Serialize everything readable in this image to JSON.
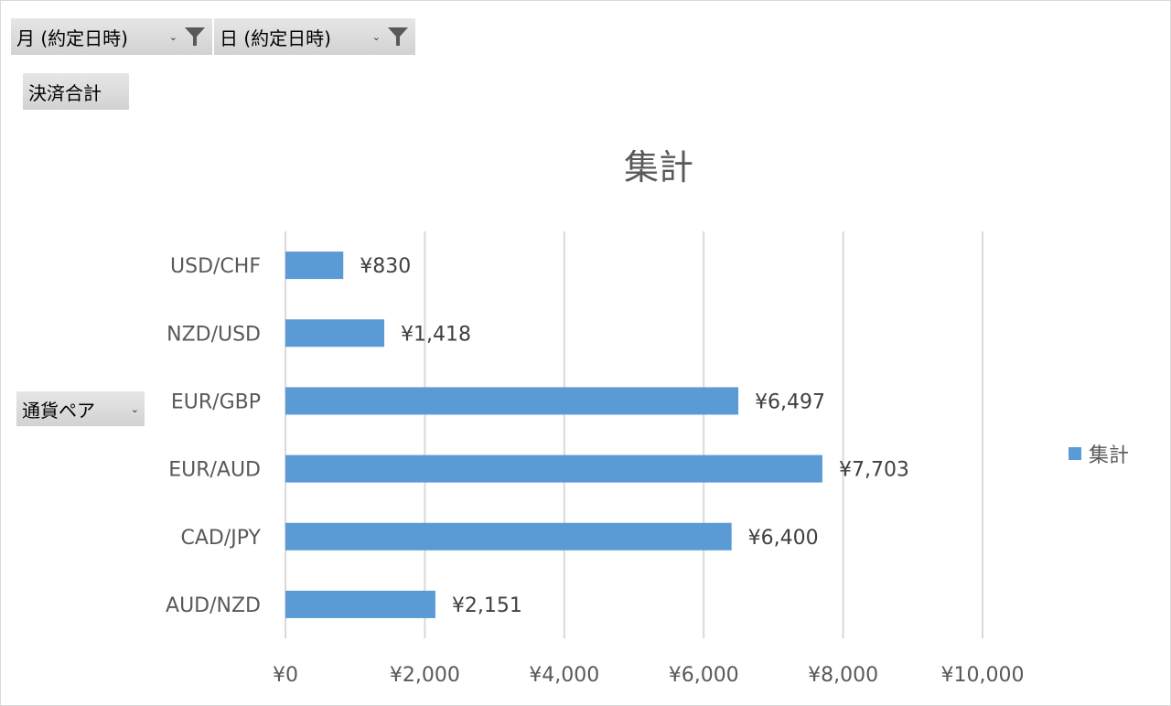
{
  "filters": {
    "month_label": "月 (約定日時)",
    "day_label": "日 (約定日時)",
    "dropdown_glyph": "⌄",
    "filter_icon": "funnel-icon"
  },
  "value_field": {
    "label": "決済合計"
  },
  "row_field": {
    "label": "通貨ペア",
    "dropdown_glyph": "⌄"
  },
  "colors": {
    "bar": "#5b9bd5",
    "grid": "#d9d9d9",
    "text": "#595959"
  },
  "chart_data": {
    "type": "bar",
    "orientation": "horizontal",
    "title": "集計",
    "categories": [
      "USD/CHF",
      "NZD/USD",
      "EUR/GBP",
      "EUR/AUD",
      "CAD/JPY",
      "AUD/NZD"
    ],
    "series": [
      {
        "name": "集計",
        "values": [
          830,
          1418,
          6497,
          7703,
          6400,
          2151
        ],
        "labels": [
          "¥830",
          "¥1,418",
          "¥6,497",
          "¥7,703",
          "¥6,400",
          "¥2,151"
        ]
      }
    ],
    "xlim": [
      0,
      10000
    ],
    "xticks": [
      0,
      2000,
      4000,
      6000,
      8000,
      10000
    ],
    "xtick_labels": [
      "¥0",
      "¥2,000",
      "¥4,000",
      "¥6,000",
      "¥8,000",
      "¥10,000"
    ],
    "grid": "vertical",
    "legend": {
      "position": "right",
      "entries": [
        "集計"
      ]
    }
  }
}
